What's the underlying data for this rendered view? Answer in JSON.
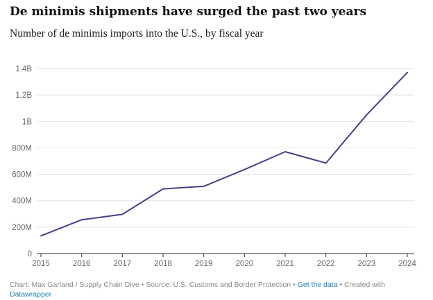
{
  "header": {
    "title": "De minimis shipments have surged the past two years",
    "subtitle": "Number of de minimis imports into the U.S., by fiscal year"
  },
  "chart_data": {
    "type": "line",
    "title": "De minimis shipments have surged the past two years",
    "subtitle": "Number of de minimis imports into the U.S., by fiscal year",
    "xlabel": "",
    "ylabel": "",
    "x": [
      2015,
      2016,
      2017,
      2018,
      2019,
      2020,
      2021,
      2022,
      2023,
      2024
    ],
    "x_tick_labels": [
      "2015",
      "2016",
      "2017",
      "2018",
      "2019",
      "2020",
      "2021",
      "2022",
      "2023",
      "2024"
    ],
    "series": [
      {
        "values": [
          134000000,
          256000000,
          297000000,
          490000000,
          509000000,
          636000000,
          771000000,
          685000000,
          1050000000,
          1370000000
        ],
        "color": "#463f8c"
      }
    ],
    "ylim": [
      0,
      1400000000
    ],
    "y_ticks": [
      0,
      200000000,
      400000000,
      600000000,
      800000000,
      1000000000,
      1200000000,
      1400000000
    ],
    "y_tick_labels": [
      "0",
      "200M",
      "400M",
      "600M",
      "800M",
      "1B",
      "1.2B",
      "1.4B"
    ],
    "grid": true,
    "legend": "none"
  },
  "footer": {
    "credit": "Chart: Max Garland / Supply Chain Dive • Source: U.S. Customs and Border Protection • ",
    "get_data_link": "Get the data",
    "created_with": " • Created with ",
    "datawrapper_link": "Datawrapper"
  },
  "colors": {
    "line": "#463f8c",
    "grid": "#e2e2e2",
    "axis": "#333333",
    "tick_text": "#666666",
    "link": "#1f7fb7"
  }
}
